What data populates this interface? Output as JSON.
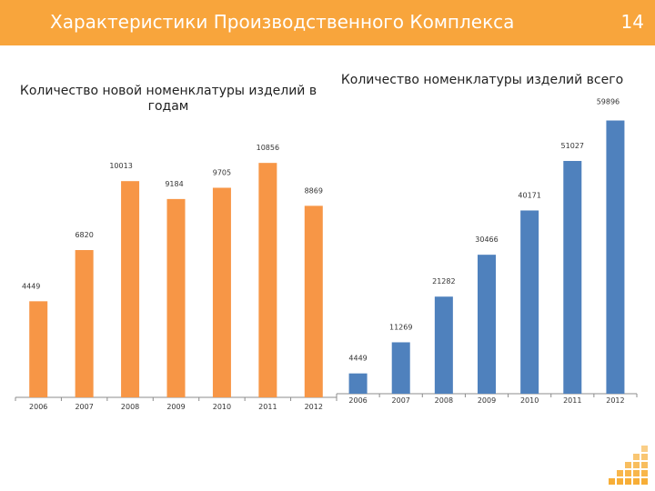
{
  "header": {
    "title": "Характеристики Производственного Комплекса",
    "slide_number": "14",
    "bar_color": "#f8a53c"
  },
  "chart_data": [
    {
      "type": "bar",
      "title": "Количество новой номенклатуры изделий в годам",
      "categories": [
        "2006",
        "2007",
        "2008",
        "2009",
        "2010",
        "2011",
        "2012"
      ],
      "values": [
        4449,
        6820,
        10013,
        9184,
        9705,
        10856,
        8869
      ],
      "value_labels": [
        "4449",
        "6820",
        "10013",
        "9184",
        "9705",
        "10856",
        "8869"
      ],
      "color": "#f79646",
      "ylim": [
        0,
        12000
      ]
    },
    {
      "type": "bar",
      "title": "Количество номенклатуры изделий всего",
      "categories": [
        "2006",
        "2007",
        "2008",
        "2009",
        "2010",
        "2011",
        "2012"
      ],
      "values": [
        4449,
        11269,
        21282,
        30466,
        40171,
        51027,
        59896
      ],
      "value_labels": [
        "4449",
        "11269",
        "21282",
        "30466",
        "40171",
        "51027",
        "59896"
      ],
      "color": "#4f81bd",
      "ylim": [
        0,
        60000
      ]
    }
  ]
}
